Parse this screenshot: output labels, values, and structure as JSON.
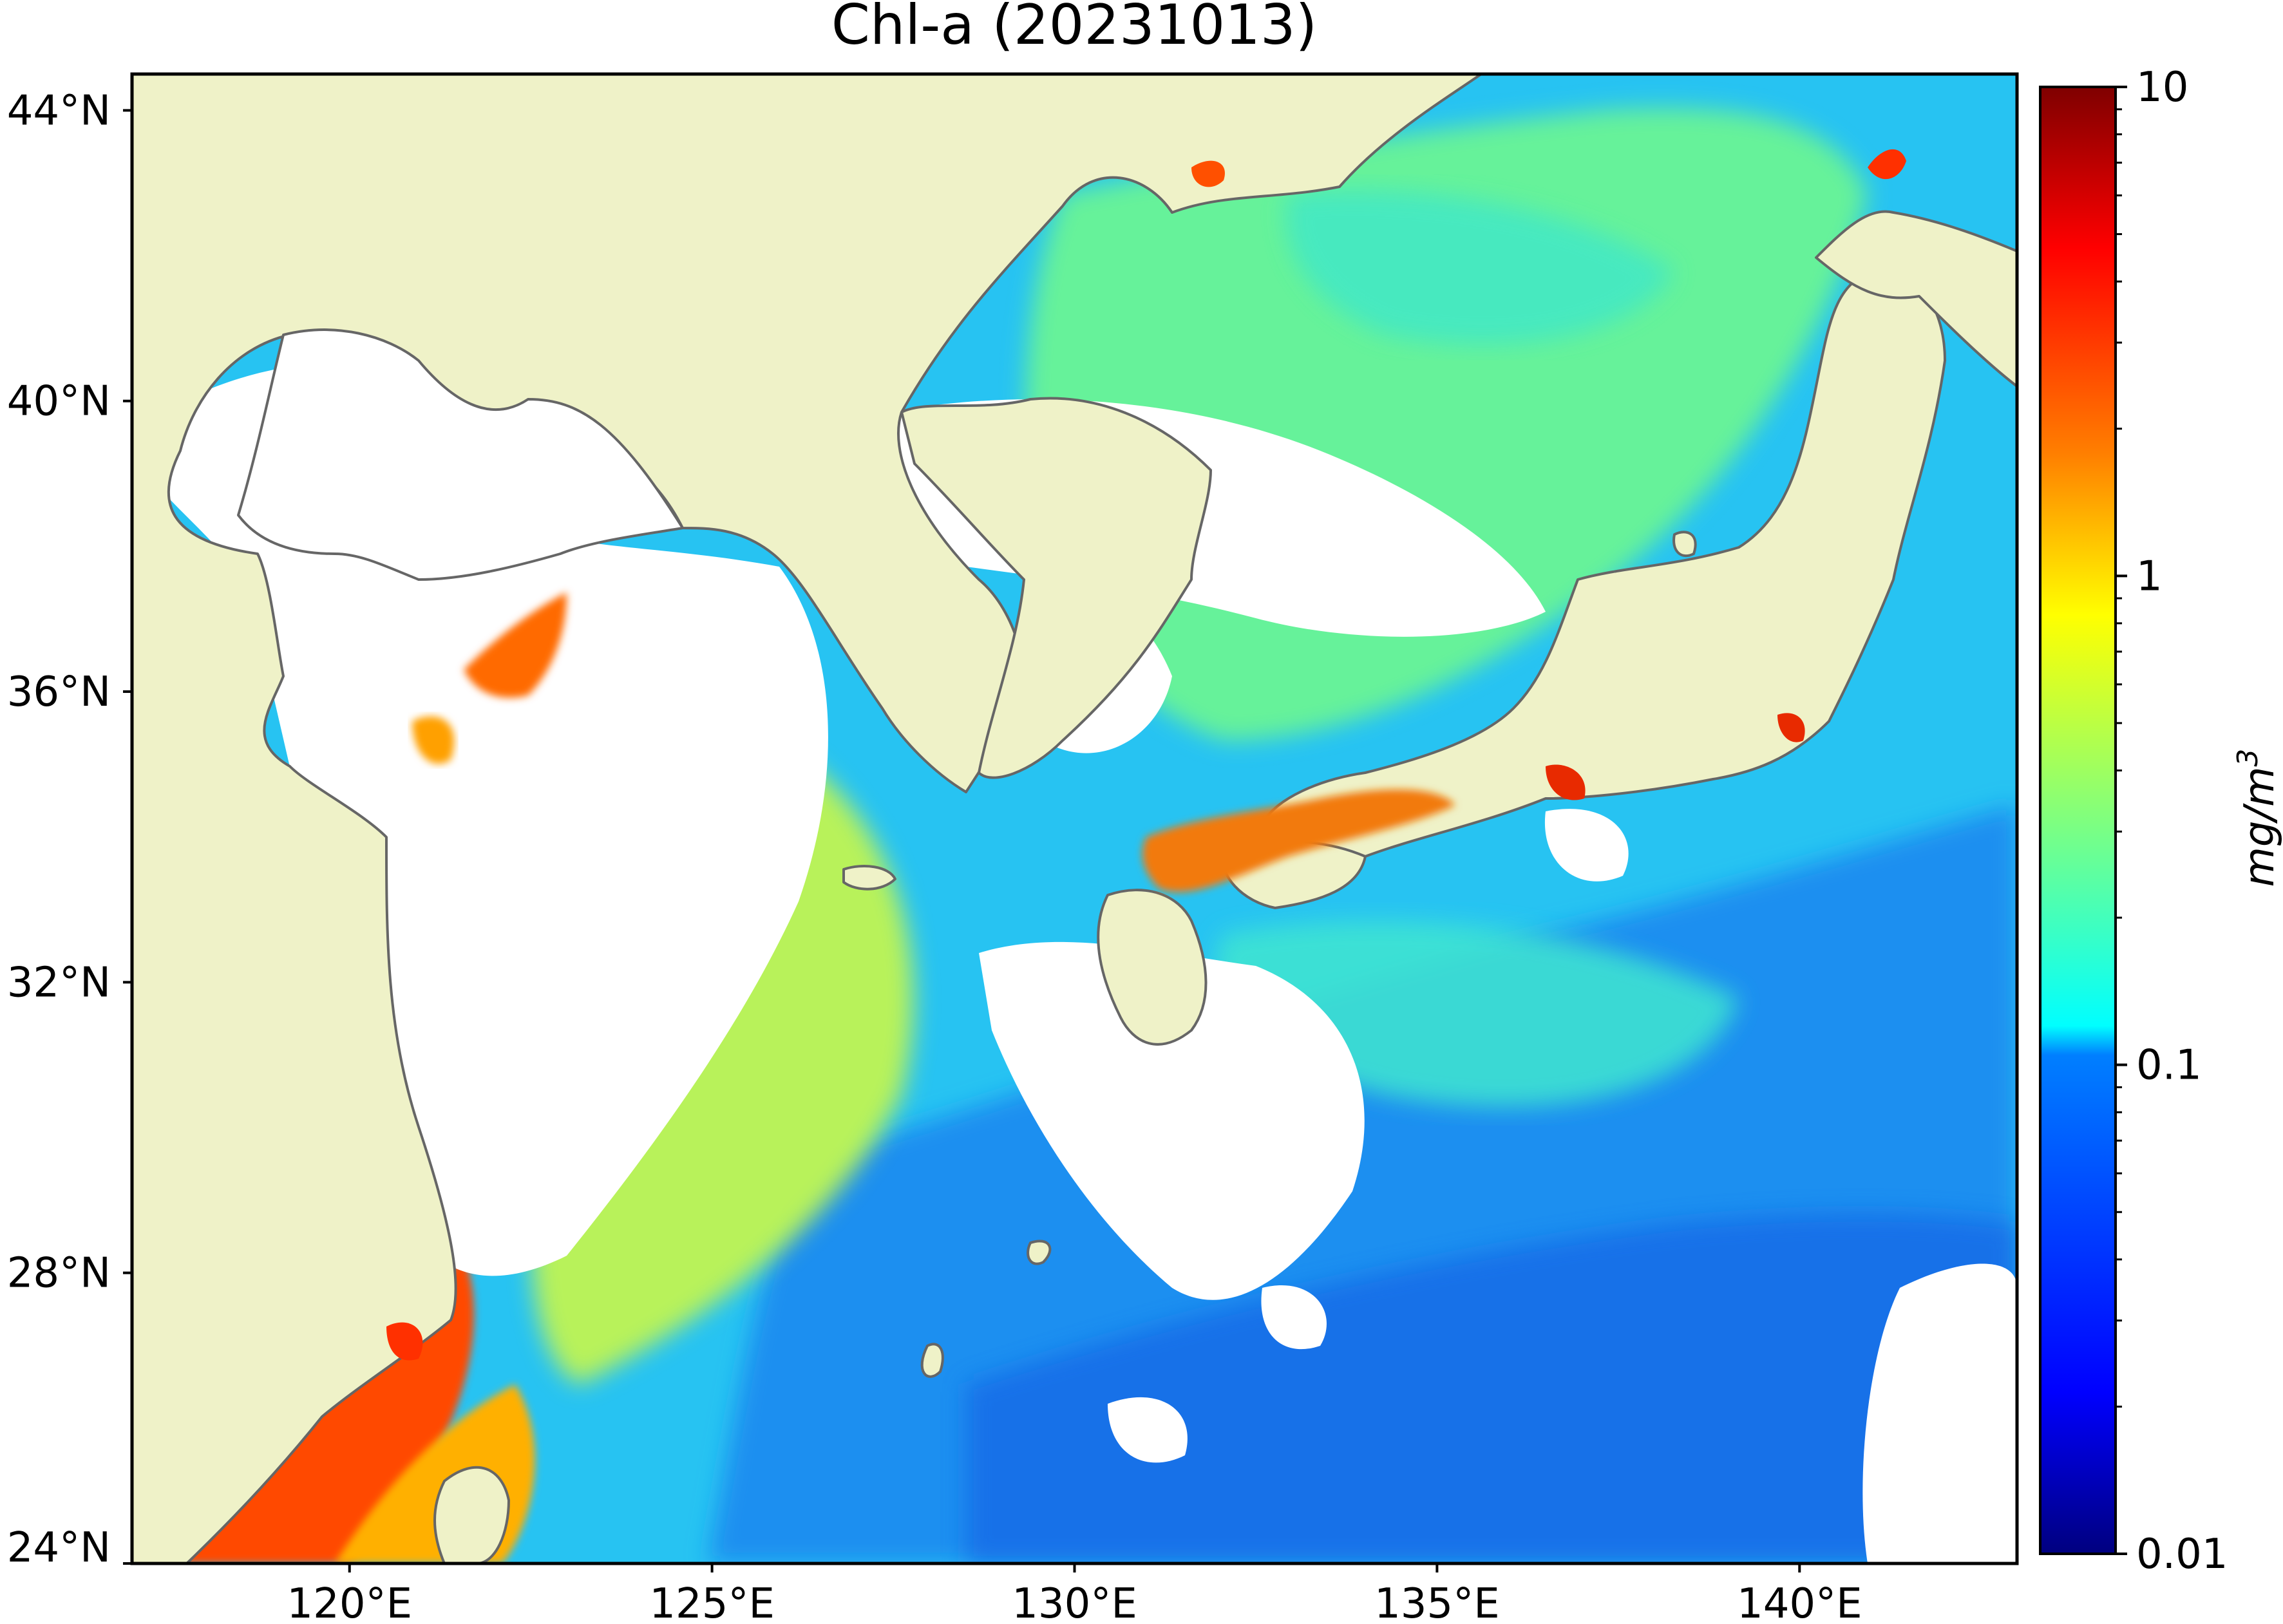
{
  "title": "Chl-a (20231013)",
  "map": {
    "extent": {
      "lon_min": 117,
      "lon_max": 143,
      "lat_min": 24,
      "lat_max": 44.5
    },
    "land_color": "#eff2c8",
    "no_data_color": "#ffffff",
    "coastline_color": "#666666",
    "lat_ticks": [
      {
        "value": 44,
        "label": "44°N"
      },
      {
        "value": 40,
        "label": "40°N"
      },
      {
        "value": 36,
        "label": "36°N"
      },
      {
        "value": 32,
        "label": "32°N"
      },
      {
        "value": 28,
        "label": "28°N"
      },
      {
        "value": 24,
        "label": "24°N"
      }
    ],
    "lon_ticks": [
      {
        "value": 120,
        "label": "120°E"
      },
      {
        "value": 125,
        "label": "125°E"
      },
      {
        "value": 130,
        "label": "130°E"
      },
      {
        "value": 135,
        "label": "135°E"
      },
      {
        "value": 140,
        "label": "140°E"
      }
    ]
  },
  "colorbar": {
    "label": "mg/m3",
    "scale": "log",
    "range": [
      0.01,
      10
    ],
    "colormap": "jet",
    "colors": [
      "#00007f",
      "#0000ff",
      "#007fff",
      "#00ffff",
      "#7fff7f",
      "#ffff00",
      "#ff7f00",
      "#ff0000",
      "#7f0000"
    ],
    "major_ticks": [
      {
        "value": 10,
        "label": "10"
      },
      {
        "value": 1,
        "label": "1"
      },
      {
        "value": 0.1,
        "label": "0.1"
      },
      {
        "value": 0.01,
        "label": "0.01"
      }
    ]
  }
}
